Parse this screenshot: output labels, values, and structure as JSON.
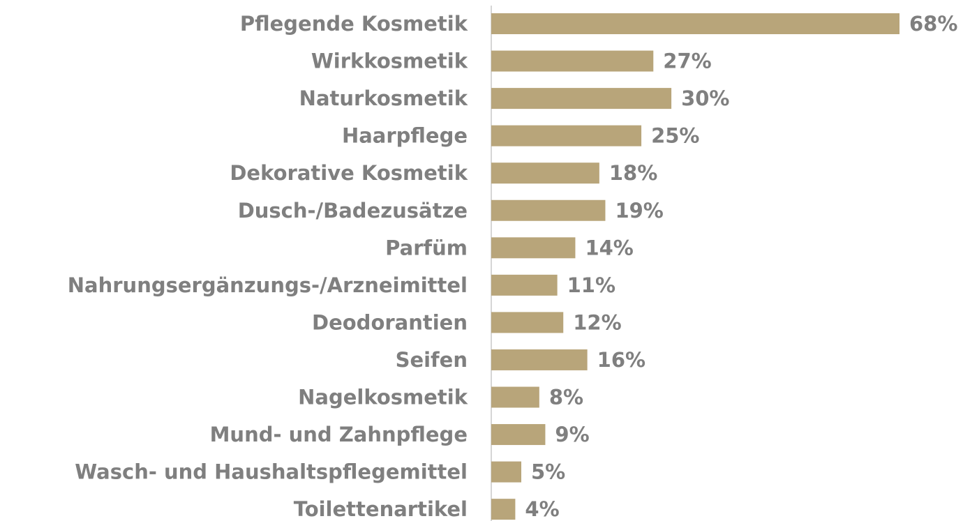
{
  "chart_data": {
    "type": "barh",
    "categories": [
      "Pflegende Kosmetik",
      "Wirkkosmetik",
      "Naturkosmetik",
      "Haarpflege",
      "Dekorative Kosmetik",
      "Dusch-/Badezusätze",
      "Parfüm",
      "Nahrungsergänzungs-/Arzneimittel",
      "Deodorantien",
      "Seifen",
      "Nagelkosmetik",
      "Mund- und Zahnpflege",
      "Wasch- und Haushaltspflegemittel",
      "Toilettenartikel"
    ],
    "values": [
      68,
      27,
      30,
      25,
      18,
      19,
      14,
      11,
      12,
      16,
      8,
      9,
      5,
      4
    ],
    "value_labels": [
      "68%",
      "27%",
      "30%",
      "25%",
      "18%",
      "19%",
      "14%",
      "11%",
      "12%",
      "16%",
      "8%",
      "9%",
      "5%",
      "4%"
    ],
    "color": "#b8a57a"
  }
}
